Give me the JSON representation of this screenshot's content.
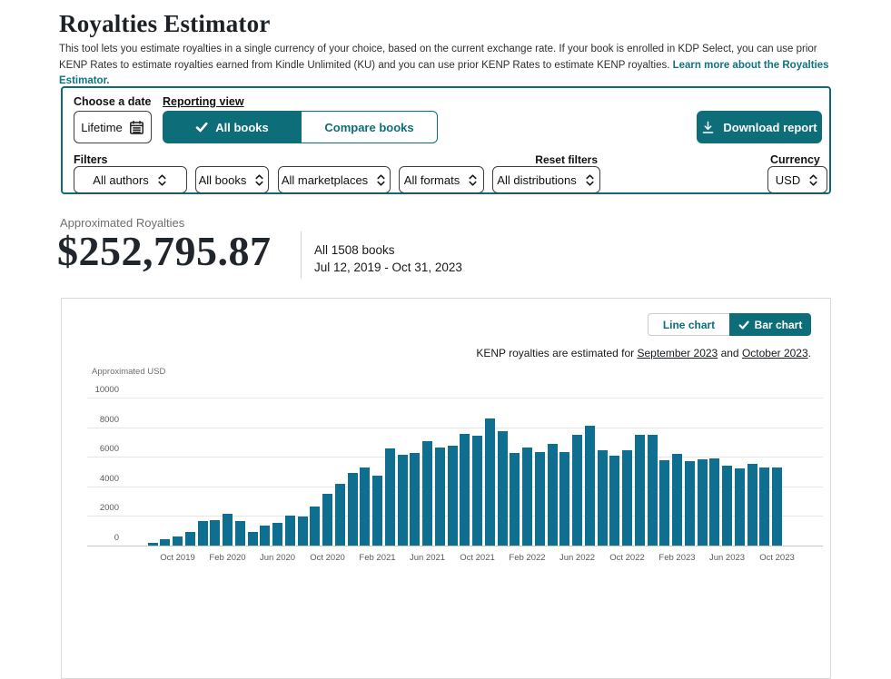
{
  "header": {
    "title": "Royalties Estimator",
    "description": "This tool lets you estimate royalties in a single currency of your choice, based on the current exchange rate. If your book is enrolled in KDP Select, you can use prior KENP Rates to estimate royalties earned from Kindle Unlimited (KU) and you can use prior KENP Rates to estimate KENP royalties. ",
    "learn_more": "Learn more about the Royalties Estimator."
  },
  "panel": {
    "choose_date_label": "Choose a date",
    "date_value": "Lifetime",
    "reporting_view_label": "Reporting view",
    "all_books_label": "All books",
    "compare_books_label": "Compare books",
    "download_label": "Download report",
    "filters_label": "Filters",
    "reset_filters_label": "Reset filters",
    "dropdowns": [
      "All authors",
      "All books",
      "All marketplaces",
      "All formats",
      "All distributions"
    ],
    "currency_label": "Currency",
    "currency_value": "USD"
  },
  "summary": {
    "label": "Approximated Royalties",
    "amount": "$252,795.87",
    "books": "All 1508 books",
    "range": "Jul 12, 2019 - Oct 31, 2023"
  },
  "chart": {
    "line_toggle": "Line chart",
    "bar_toggle": "Bar chart",
    "note_prefix": "KENP royalties are estimated for ",
    "note_month1": "September 2023",
    "note_and": " and ",
    "note_month2": "October 2023",
    "note_suffix": ".",
    "axis_label": "Approximated USD"
  },
  "chart_data": {
    "type": "bar",
    "title": "Approximated royalties per month",
    "ylabel": "Approximated USD",
    "xlabel": "",
    "ylim": [
      0,
      10000
    ],
    "y_ticks": [
      0,
      2000,
      4000,
      6000,
      8000,
      10000
    ],
    "grid": true,
    "legend_position": "none",
    "bar_color": "#0f6f90",
    "x": [
      "Aug 2019",
      "Sep 2019",
      "Oct 2019",
      "Nov 2019",
      "Dec 2019",
      "Jan 2020",
      "Feb 2020",
      "Mar 2020",
      "Apr 2020",
      "May 2020",
      "Jun 2020",
      "Jul 2020",
      "Aug 2020",
      "Sep 2020",
      "Oct 2020",
      "Nov 2020",
      "Dec 2020",
      "Jan 2021",
      "Feb 2021",
      "Mar 2021",
      "Apr 2021",
      "May 2021",
      "Jun 2021",
      "Jul 2021",
      "Aug 2021",
      "Sep 2021",
      "Oct 2021",
      "Nov 2021",
      "Dec 2021",
      "Jan 2022",
      "Feb 2022",
      "Mar 2022",
      "Apr 2022",
      "May 2022",
      "Jun 2022",
      "Jul 2022",
      "Aug 2022",
      "Sep 2022",
      "Oct 2022",
      "Nov 2022",
      "Dec 2022",
      "Jan 2023",
      "Feb 2023",
      "Mar 2023",
      "Apr 2023",
      "May 2023",
      "Jun 2023",
      "Jul 2023",
      "Aug 2023",
      "Sep 2023",
      "Oct 2023"
    ],
    "values": [
      200,
      450,
      600,
      950,
      1650,
      1700,
      2150,
      1650,
      950,
      1350,
      1550,
      2050,
      1950,
      2650,
      3500,
      4200,
      4900,
      5300,
      4700,
      6550,
      6150,
      6250,
      7050,
      6650,
      6750,
      7550,
      7450,
      8600,
      7750,
      6250,
      6650,
      6350,
      6900,
      6350,
      7500,
      8100,
      6450,
      6050,
      6450,
      7500,
      7500,
      5750,
      6200,
      5700,
      5800,
      5900,
      5400,
      5200,
      5500,
      5250,
      5250
    ],
    "x_tick_labels": [
      "Oct 2019",
      "Feb 2020",
      "Jun 2020",
      "Oct 2020",
      "Feb 2021",
      "Jun 2021",
      "Oct 2021",
      "Feb 2022",
      "Jun 2022",
      "Oct 2022",
      "Feb 2023",
      "Jun 2023",
      "Oct 2023"
    ],
    "x_tick_indices": [
      2,
      6,
      10,
      14,
      18,
      22,
      26,
      30,
      34,
      38,
      42,
      46,
      50
    ]
  },
  "colors": {
    "teal_button": "#0d6e7a",
    "bar": "#0f6f90",
    "link": "#0e7484",
    "gridline": "#e6e6e6"
  }
}
